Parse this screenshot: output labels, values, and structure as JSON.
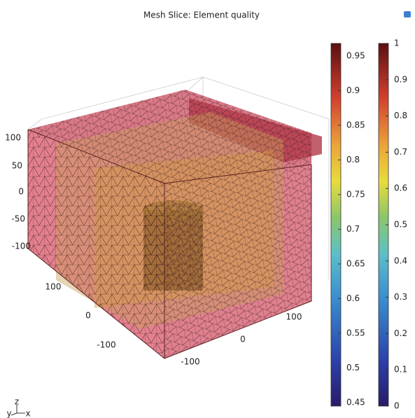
{
  "title": "Mesh  Slice: Element quality",
  "colorbars": [
    {
      "lim": [
        0.445,
        0.968
      ],
      "ticks": [
        0.45,
        0.5,
        0.55,
        0.6,
        0.65,
        0.7,
        0.75,
        0.8,
        0.85,
        0.9,
        0.95
      ]
    },
    {
      "lim": [
        0,
        1
      ],
      "ticks": [
        0,
        0.1,
        0.2,
        0.3,
        0.4,
        0.5,
        0.6,
        0.7,
        0.8,
        0.9,
        1
      ]
    }
  ],
  "axis_labels": {
    "z": [
      100,
      50,
      0,
      -50,
      -100
    ],
    "y": [
      100,
      0,
      -100
    ],
    "x": [
      100,
      0,
      -100
    ]
  },
  "triad": [
    "y",
    "z",
    "x"
  ]
}
